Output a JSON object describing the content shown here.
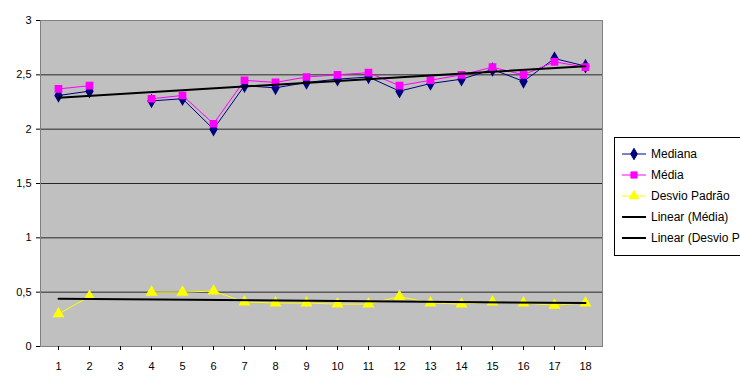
{
  "chart_data": {
    "type": "line",
    "categories": [
      "1",
      "2",
      "3",
      "4",
      "5",
      "6",
      "7",
      "8",
      "9",
      "10",
      "11",
      "12",
      "13",
      "14",
      "15",
      "16",
      "17",
      "18"
    ],
    "series": [
      {
        "name": "Mediana",
        "color": "#000080",
        "marker": "diamond",
        "line_style": "solid",
        "values": [
          2.31,
          2.35,
          null,
          2.26,
          2.28,
          2.0,
          2.4,
          2.38,
          2.43,
          2.46,
          2.48,
          2.35,
          2.42,
          2.46,
          2.55,
          2.44,
          2.65,
          2.58
        ]
      },
      {
        "name": "Média",
        "color": "#ff00ff",
        "marker": "square",
        "line_style": "solid",
        "values": [
          2.37,
          2.4,
          null,
          2.28,
          2.31,
          2.05,
          2.45,
          2.43,
          2.48,
          2.5,
          2.52,
          2.4,
          2.45,
          2.5,
          2.57,
          2.5,
          2.62,
          2.57
        ]
      },
      {
        "name": "Desvio Padrão",
        "color": "#ffff00",
        "marker": "triangle",
        "line_style": "solid",
        "values": [
          0.3,
          0.46,
          null,
          0.5,
          0.5,
          0.51,
          0.41,
          0.4,
          0.4,
          0.39,
          0.39,
          0.46,
          0.4,
          0.39,
          0.41,
          0.4,
          0.38,
          0.4
        ]
      },
      {
        "name": "Linear (Média)",
        "color": "#000000",
        "type": "trendline",
        "marker": "none",
        "line_style": "solid",
        "values": [
          2.29,
          null,
          null,
          null,
          null,
          null,
          null,
          null,
          null,
          null,
          null,
          null,
          null,
          null,
          null,
          null,
          null,
          2.58
        ]
      },
      {
        "name": "Linear (Desvio Padrão)",
        "color": "#000000",
        "type": "trendline",
        "marker": "none",
        "line_style": "solid",
        "values": [
          0.44,
          null,
          null,
          null,
          null,
          null,
          null,
          null,
          null,
          null,
          null,
          null,
          null,
          null,
          null,
          null,
          null,
          0.4
        ]
      }
    ],
    "ylim": [
      0,
      3
    ],
    "yticks": [
      0,
      {
        "value": 0.5,
        "label": "0,5"
      },
      1,
      {
        "value": 1.5,
        "label": "1,5"
      },
      2,
      {
        "value": 2.5,
        "label": "2,5"
      },
      3
    ],
    "grid": true,
    "legend": "right"
  }
}
